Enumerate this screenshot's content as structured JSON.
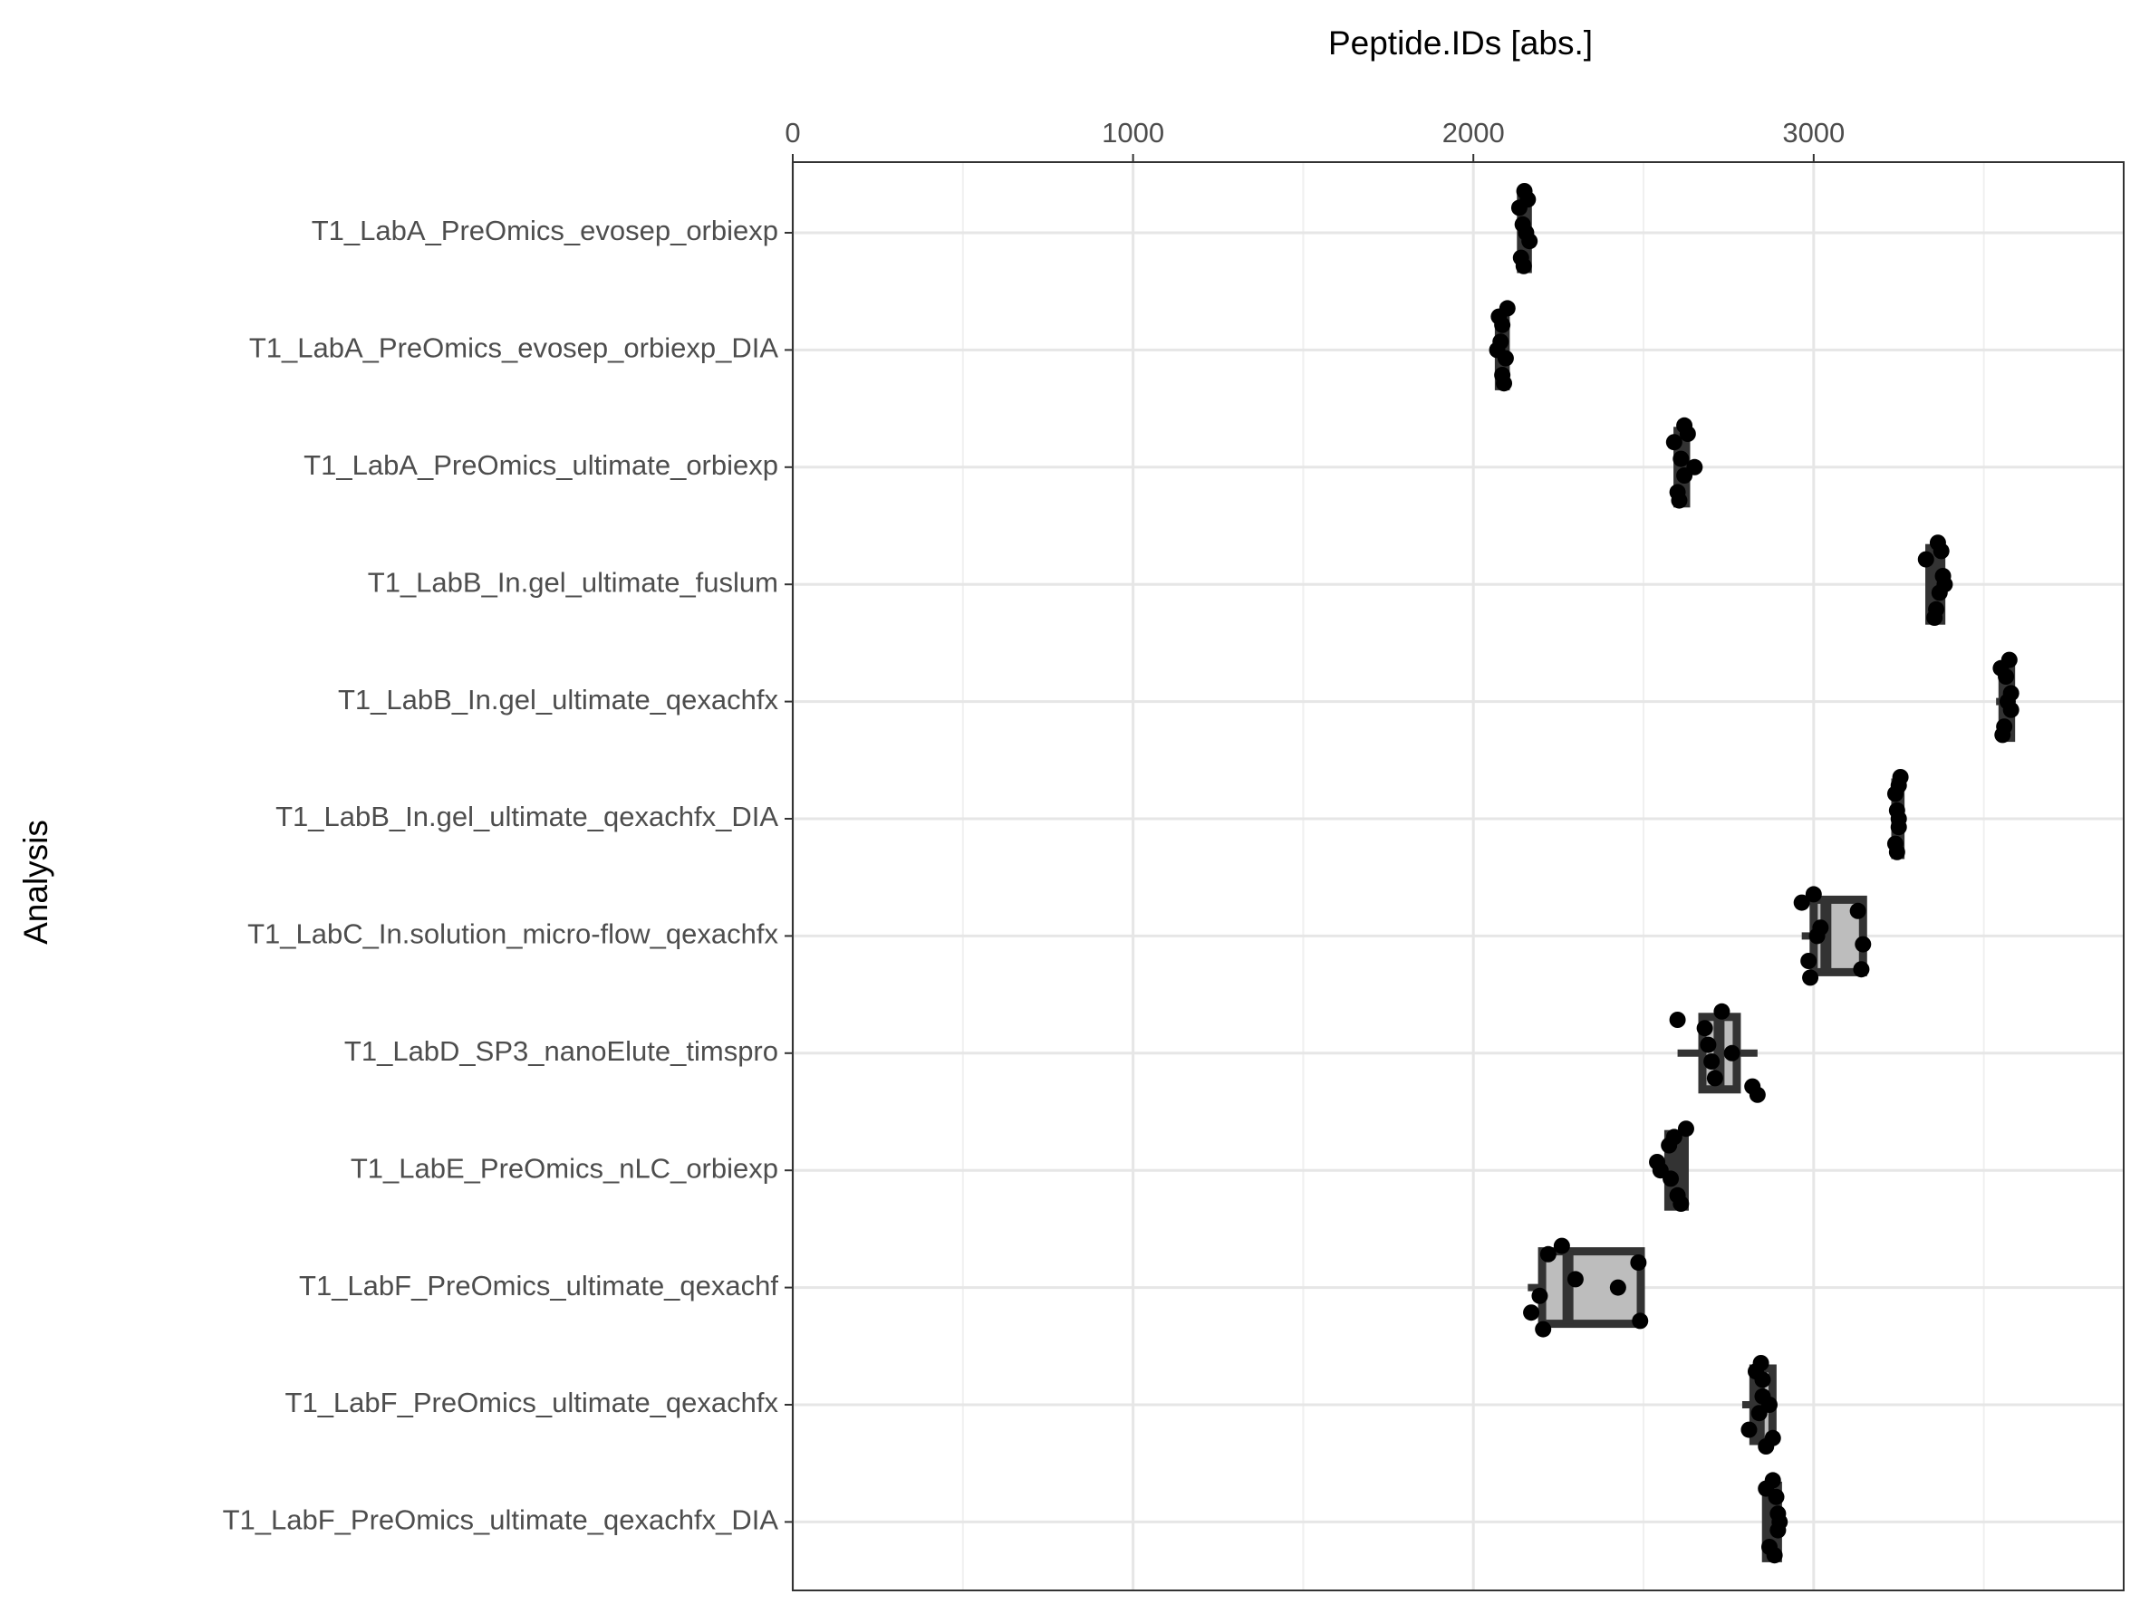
{
  "chart_data": {
    "type": "boxplot",
    "title": "Peptide.IDs  [abs.]",
    "y_label": "Analysis",
    "categories": [
      "T1_LabA_PreOmics_evosep_orbiexp",
      "T1_LabA_PreOmics_evosep_orbiexp_DIA",
      "T1_LabA_PreOmics_ultimate_orbiexp",
      "T1_LabB_In.gel_ultimate_fuslum",
      "T1_LabB_In.gel_ultimate_qexachfx",
      "T1_LabB_In.gel_ultimate_qexachfx_DIA",
      "T1_LabC_In.solution_micro-flow_qexachfx",
      "T1_LabD_SP3_nanoElute_timspro",
      "T1_LabE_PreOmics_nLC_orbiexp",
      "T1_LabF_PreOmics_ultimate_qexachf",
      "T1_LabF_PreOmics_ultimate_qexachfx",
      "T1_LabF_PreOmics_ultimate_qexachfx_DIA"
    ],
    "boxes": [
      {
        "min": 2130,
        "q1": 2140,
        "median": 2150,
        "q3": 2160,
        "max": 2170,
        "points": [
          2150,
          2145,
          2140,
          2160,
          2155,
          2148,
          2135,
          2165
        ]
      },
      {
        "min": 2070,
        "q1": 2075,
        "median": 2085,
        "q3": 2095,
        "max": 2105,
        "points": [
          2100,
          2080,
          2085,
          2075,
          2070,
          2090,
          2085,
          2095
        ]
      },
      {
        "min": 2590,
        "q1": 2600,
        "median": 2610,
        "q3": 2625,
        "max": 2650,
        "points": [
          2620,
          2610,
          2600,
          2630,
          2650,
          2605,
          2590,
          2620
        ]
      },
      {
        "min": 3330,
        "q1": 3340,
        "median": 3360,
        "q3": 3375,
        "max": 3385,
        "points": [
          3365,
          3380,
          3360,
          3375,
          3385,
          3355,
          3330,
          3370
        ]
      },
      {
        "min": 3536,
        "q1": 3555,
        "median": 3565,
        "q3": 3580,
        "max": 3585,
        "points": [
          3575,
          3580,
          3560,
          3550,
          3570,
          3555,
          3565,
          3580
        ]
      },
      {
        "min": 3238,
        "q1": 3240,
        "median": 3248,
        "q3": 3255,
        "max": 3258,
        "points": [
          3255,
          3245,
          3240,
          3250,
          3250,
          3245,
          3240,
          3250
        ]
      },
      {
        "min": 2965,
        "q1": 3000,
        "median": 3036,
        "q3": 3145,
        "max": 3145,
        "points": [
          3000,
          3020,
          2985,
          2965,
          3010,
          3140,
          3130,
          3145,
          2990
        ]
      },
      {
        "min": 2600,
        "q1": 2673,
        "median": 2722,
        "q3": 2774,
        "max": 2835,
        "points": [
          2730,
          2690,
          2710,
          2600,
          2760,
          2820,
          2680,
          2700,
          2835
        ]
      },
      {
        "min": 2540,
        "q1": 2573,
        "median": 2600,
        "q3": 2621,
        "max": 2625,
        "points": [
          2625,
          2540,
          2600,
          2590,
          2550,
          2610,
          2575,
          2580
        ]
      },
      {
        "min": 2160,
        "q1": 2202,
        "median": 2278,
        "q3": 2492,
        "max": 2492,
        "points": [
          2260,
          2300,
          2170,
          2220,
          2425,
          2490,
          2485,
          2195,
          2205
        ]
      },
      {
        "min": 2790,
        "q1": 2823,
        "median": 2840,
        "q3": 2879,
        "max": 2880,
        "points": [
          2845,
          2850,
          2810,
          2830,
          2870,
          2880,
          2850,
          2840,
          2860
        ]
      },
      {
        "min": 2860,
        "q1": 2860,
        "median": 2875,
        "q3": 2895,
        "max": 2900,
        "points": [
          2880,
          2895,
          2870,
          2860,
          2900,
          2885,
          2890,
          2895
        ]
      }
    ],
    "xlim": [
      0,
      3911
    ],
    "xticks": [
      0,
      1000,
      2000,
      3000
    ],
    "minor_xticks": [
      500,
      1500,
      2500,
      3500
    ],
    "grid": true,
    "box_fill": "#bdbdbd",
    "box_stroke": "#333333",
    "point_color": "#000000"
  }
}
